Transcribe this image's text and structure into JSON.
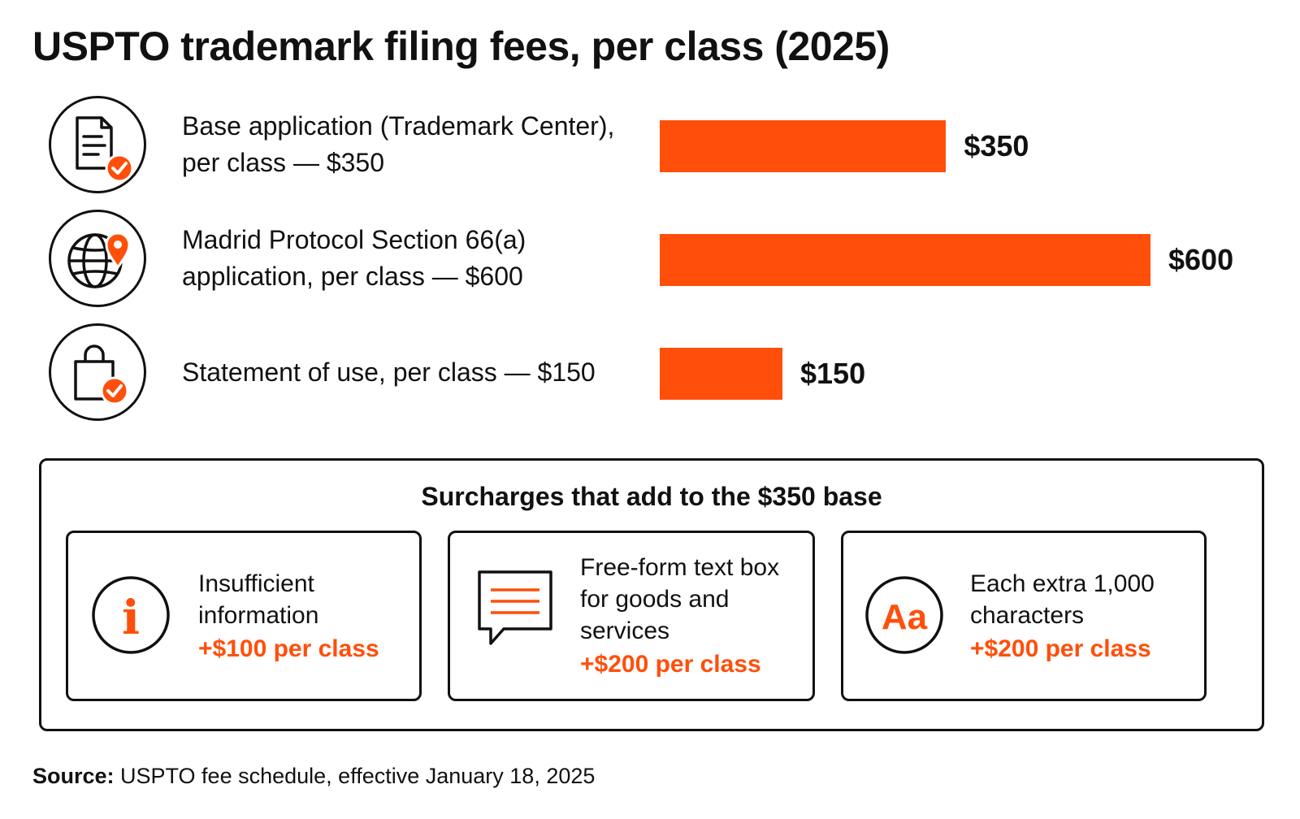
{
  "title": "USPTO trademark filing fees, per class (2025)",
  "chart_data": {
    "type": "bar",
    "orientation": "horizontal",
    "categories": [
      "Base application (Trademark Center), per class — $350",
      "Madrid Protocol Section 66(a) application, per class — $600",
      "Statement of use, per class — $150"
    ],
    "values": [
      350,
      600,
      150
    ],
    "value_labels": [
      "$350",
      "$600",
      "$150"
    ],
    "bar_color": "#ff4f0b",
    "icons": [
      "document-check-icon",
      "globe-pin-icon",
      "shopping-bag-check-icon"
    ]
  },
  "surcharges": {
    "title": "Surcharges that add to the $350 base",
    "items": [
      {
        "label": "Insufficient information",
        "fee": "+$100 per class",
        "icon": "info-icon"
      },
      {
        "label": "Free-form text box for goods and services",
        "fee": "+$200 per class",
        "icon": "speech-bubble-icon"
      },
      {
        "label": "Each extra 1,000 characters",
        "fee": "+$200 per class",
        "icon": "text-aa-icon"
      }
    ]
  },
  "icon_text": {
    "aa": "Aa",
    "info": "i"
  },
  "source": {
    "label": "Source:",
    "text": " USPTO fee schedule, effective January 18, 2025"
  },
  "colors": {
    "accent": "#ff4f0b",
    "text": "#111111"
  }
}
